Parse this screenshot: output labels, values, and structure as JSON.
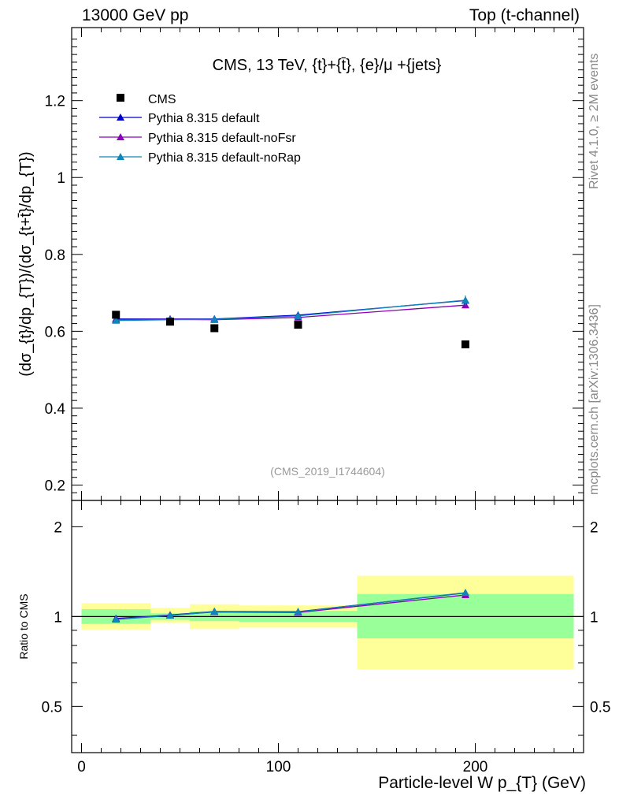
{
  "header": {
    "left": "13000 GeV pp",
    "right": "Top (t-channel)"
  },
  "side_labels": {
    "rivet": "Rivet 4.1.0, ≥ 2M events",
    "mcplots": "mcplots.cern.ch [arXiv:1306.3436]"
  },
  "chart_data": {
    "type": "scatter",
    "title": "CMS, 13 TeV, {t}+{t̄}, {e}/μ +{jets}",
    "analysis_id": "(CMS_2019_I1744604)",
    "xlabel": "Particle-level W p_{T} (GeV)",
    "ylabel": "(dσ_{t}/dp_{T})/(dσ_{t+t̄}/dp_{T})",
    "ratio_ylabel": "Ratio to CMS",
    "xlim": [
      -5,
      255
    ],
    "ylim": [
      0.16,
      1.39
    ],
    "ratio_ylim": [
      0.35,
      2.45
    ],
    "xticks": [
      "0",
      "100",
      "200"
    ],
    "yticks": [
      "0.2",
      "0.4",
      "0.6",
      "0.8",
      "1",
      "1.2"
    ],
    "ratio_yticks": [
      "0.5",
      "1",
      "2"
    ],
    "bins": [
      [
        0,
        35
      ],
      [
        35,
        55
      ],
      [
        55,
        80
      ],
      [
        80,
        140
      ],
      [
        140,
        250
      ]
    ],
    "data": {
      "name": "CMS",
      "x": [
        17.5,
        45,
        67.5,
        110,
        195
      ],
      "y": [
        0.643,
        0.625,
        0.608,
        0.617,
        0.566
      ]
    },
    "series": [
      {
        "name": "Pythia 8.315 default",
        "color": "#0000cc",
        "marker": "triangle",
        "x": [
          17.5,
          45,
          67.5,
          110,
          195
        ],
        "y": [
          0.632,
          0.632,
          0.632,
          0.642,
          0.68
        ]
      },
      {
        "name": "Pythia 8.315 default-noFsr",
        "color": "#8a00b8",
        "marker": "triangle",
        "x": [
          17.5,
          45,
          67.5,
          110,
          195
        ],
        "y": [
          0.63,
          0.631,
          0.63,
          0.636,
          0.668
        ]
      },
      {
        "name": "Pythia 8.315 default-noRap",
        "color": "#0f86b8",
        "marker": "triangle",
        "x": [
          17.5,
          45,
          67.5,
          110,
          195
        ],
        "y": [
          0.628,
          0.63,
          0.631,
          0.64,
          0.681
        ]
      }
    ],
    "ratio_series": [
      {
        "name": "Pythia 8.315 default",
        "values": [
          0.985,
          1.012,
          1.04,
          1.038,
          1.2
        ]
      },
      {
        "name": "Pythia 8.315 default-noFsr",
        "values": [
          0.98,
          1.01,
          1.036,
          1.032,
          1.181
        ]
      },
      {
        "name": "Pythia 8.315 default-noRap",
        "values": [
          0.978,
          1.008,
          1.038,
          1.036,
          1.203
        ]
      }
    ],
    "uncertainty_bands": {
      "inner_color": "#99ff99",
      "outer_color": "#ffff99",
      "inner": [
        [
          0.945,
          1.058
        ],
        [
          0.975,
          1.025
        ],
        [
          0.965,
          1.04
        ],
        [
          0.96,
          1.045
        ],
        [
          0.845,
          1.19
        ]
      ],
      "outer": [
        [
          0.905,
          1.11
        ],
        [
          0.952,
          1.07
        ],
        [
          0.908,
          1.1
        ],
        [
          0.918,
          1.09
        ],
        [
          0.665,
          1.37
        ]
      ]
    }
  }
}
